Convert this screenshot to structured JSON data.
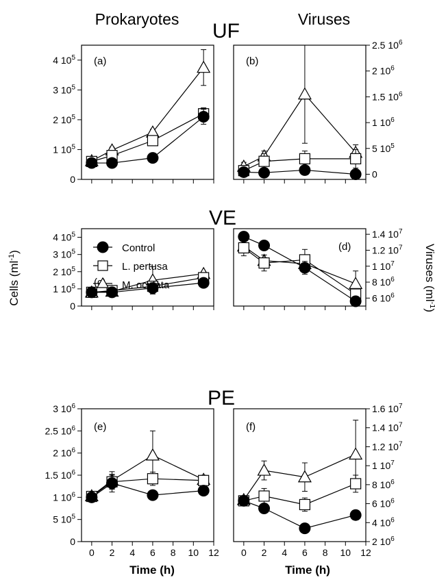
{
  "headings": {
    "left": "Prokaryotes",
    "right": "Viruses",
    "rows": [
      "UF",
      "VE",
      "PE"
    ]
  },
  "axes": {
    "left_ylabel": "Cells (ml",
    "left_ylabel_sup": "-1",
    "left_ylabel_end": ")",
    "right_ylabel": "Viruses (ml",
    "right_ylabel_sup": "-1",
    "right_ylabel_end": ")",
    "xlabel": "Time (h)",
    "x_ticks": [
      "0",
      "2",
      "4",
      "6",
      "8",
      "10",
      "12"
    ]
  },
  "legend": [
    {
      "label": "Control",
      "marker": "circle"
    },
    {
      "label": "L. pertusa",
      "marker": "square"
    },
    {
      "label": "M. oculata",
      "marker": "triangle"
    }
  ],
  "chart_data": [
    {
      "panel": "(a)",
      "type": "line",
      "xlim": [
        -1,
        12
      ],
      "ylim": [
        0,
        450000
      ],
      "show_xticklabels": false,
      "yticks": [
        {
          "v": 0,
          "label": "0"
        },
        {
          "v": 100000,
          "label": "1 10",
          "exp": "5"
        },
        {
          "v": 200000,
          "label": "2 10",
          "exp": "5"
        },
        {
          "v": 300000,
          "label": "3 10",
          "exp": "5"
        },
        {
          "v": 400000,
          "label": "4 10",
          "exp": "5"
        }
      ],
      "series": [
        {
          "name": "Control",
          "marker": "circle",
          "x": [
            0,
            2,
            6,
            11
          ],
          "y": [
            55000,
            55000,
            72000,
            210000
          ],
          "err": [
            8000,
            5000,
            5000,
            25000
          ]
        },
        {
          "name": "L. pertusa",
          "marker": "square",
          "x": [
            0,
            2,
            6,
            11
          ],
          "y": [
            60000,
            80000,
            130000,
            220000
          ],
          "err": [
            10000,
            8000,
            12000,
            20000
          ]
        },
        {
          "name": "M. oculata",
          "marker": "triangle",
          "x": [
            0,
            2,
            6,
            11
          ],
          "y": [
            62000,
            98000,
            158000,
            375000
          ],
          "err": [
            10000,
            10000,
            10000,
            60000
          ]
        }
      ]
    },
    {
      "panel": "(b)",
      "type": "line",
      "xlim": [
        -1,
        12
      ],
      "ylim": [
        -100000,
        2500000
      ],
      "show_xticklabels": false,
      "yticks": [
        {
          "v": 0,
          "label": "0"
        },
        {
          "v": 500000,
          "label": "5 10",
          "exp": "5"
        },
        {
          "v": 1000000,
          "label": "1 10",
          "exp": "6"
        },
        {
          "v": 1500000,
          "label": "1.5 10",
          "exp": "6"
        },
        {
          "v": 2000000,
          "label": "2 10",
          "exp": "6"
        },
        {
          "v": 2500000,
          "label": "2.5 10",
          "exp": "6"
        }
      ],
      "series": [
        {
          "name": "Control",
          "marker": "circle",
          "x": [
            0,
            2,
            6,
            11
          ],
          "y": [
            40000,
            30000,
            80000,
            0
          ],
          "err": [
            0,
            0,
            0,
            0
          ]
        },
        {
          "name": "L. pertusa",
          "marker": "square",
          "x": [
            0,
            2,
            6,
            11
          ],
          "y": [
            70000,
            250000,
            300000,
            300000
          ],
          "err": [
            100000,
            150000,
            150000,
            180000
          ]
        },
        {
          "name": "M. oculata",
          "marker": "triangle",
          "x": [
            0,
            2,
            6,
            11
          ],
          "y": [
            150000,
            350000,
            1550000,
            420000
          ],
          "err": [
            80000,
            100000,
            950000,
            150000
          ]
        }
      ]
    },
    {
      "panel": "(c)",
      "type": "line",
      "xlim": [
        -1,
        12
      ],
      "ylim": [
        0,
        450000
      ],
      "show_xticklabels": false,
      "yticks": [
        {
          "v": 0,
          "label": "0"
        },
        {
          "v": 100000,
          "label": "1 10",
          "exp": "5"
        },
        {
          "v": 200000,
          "label": "2 10",
          "exp": "5"
        },
        {
          "v": 300000,
          "label": "3 10",
          "exp": "5"
        },
        {
          "v": 400000,
          "label": "4 10",
          "exp": "5"
        }
      ],
      "series": [
        {
          "name": "Control",
          "marker": "circle",
          "x": [
            0,
            2,
            6,
            11
          ],
          "y": [
            80000,
            80000,
            105000,
            135000
          ],
          "err": [
            8000,
            8000,
            30000,
            10000
          ]
        },
        {
          "name": "L. pertusa",
          "marker": "square",
          "x": [
            0,
            2,
            6,
            11
          ],
          "y": [
            80000,
            90000,
            115000,
            165000
          ],
          "err": [
            8000,
            8000,
            10000,
            20000
          ]
        },
        {
          "name": "M. oculata",
          "marker": "triangle",
          "x": [
            0,
            2,
            6,
            11
          ],
          "y": [
            80000,
            85000,
            150000,
            188000
          ],
          "err": [
            8000,
            8000,
            80000,
            10000
          ]
        }
      ]
    },
    {
      "panel": "(d)",
      "type": "line",
      "xlim": [
        -1,
        12
      ],
      "ylim": [
        5000000,
        14700000
      ],
      "show_xticklabels": false,
      "yticks": [
        {
          "v": 6000000,
          "label": "6 10",
          "exp": "6"
        },
        {
          "v": 8000000,
          "label": "8 10",
          "exp": "6"
        },
        {
          "v": 10000000,
          "label": "1 10",
          "exp": "7"
        },
        {
          "v": 12000000,
          "label": "1.2 10",
          "exp": "7"
        },
        {
          "v": 14000000,
          "label": "1.4 10",
          "exp": "7"
        }
      ],
      "series": [
        {
          "name": "Control",
          "marker": "circle",
          "x": [
            0,
            2,
            6,
            11
          ],
          "y": [
            13700000,
            12600000,
            9800000,
            5600000
          ],
          "err": [
            600000,
            500000,
            800000,
            0
          ]
        },
        {
          "name": "L. pertusa",
          "marker": "square",
          "x": [
            0,
            2,
            6,
            11
          ],
          "y": [
            12300000,
            10400000,
            10800000,
            6500000
          ],
          "err": [
            1000000,
            1000000,
            1300000,
            500000
          ]
        },
        {
          "name": "M. oculata",
          "marker": "triangle",
          "x": [
            0,
            2,
            6,
            11
          ],
          "y": [
            12500000,
            10700000,
            10300000,
            7800000
          ],
          "err": [
            700000,
            700000,
            600000,
            1600000
          ]
        }
      ]
    },
    {
      "panel": "(e)",
      "type": "line",
      "xlim": [
        -1,
        12
      ],
      "ylim": [
        0,
        3000000
      ],
      "show_xticklabels": true,
      "yticks": [
        {
          "v": 0,
          "label": "0"
        },
        {
          "v": 500000,
          "label": "5 10",
          "exp": "5"
        },
        {
          "v": 1000000,
          "label": "1 10",
          "exp": "6"
        },
        {
          "v": 1500000,
          "label": "1.5 10",
          "exp": "6"
        },
        {
          "v": 2000000,
          "label": "2 10",
          "exp": "6"
        },
        {
          "v": 2500000,
          "label": "2.5 10",
          "exp": "6"
        },
        {
          "v": 3000000,
          "label": "3 10",
          "exp": "6"
        }
      ],
      "series": [
        {
          "name": "Control",
          "marker": "circle",
          "x": [
            0,
            2,
            6,
            11
          ],
          "y": [
            1000000,
            1320000,
            1050000,
            1150000
          ],
          "err": [
            60000,
            200000,
            0,
            80000
          ]
        },
        {
          "name": "L. pertusa",
          "marker": "square",
          "x": [
            0,
            2,
            6,
            11
          ],
          "y": [
            1020000,
            1350000,
            1420000,
            1380000
          ],
          "err": [
            60000,
            150000,
            150000,
            100000
          ]
        },
        {
          "name": "M. oculata",
          "marker": "triangle",
          "x": [
            0,
            2,
            6,
            11
          ],
          "y": [
            1030000,
            1380000,
            1950000,
            1400000
          ],
          "err": [
            60000,
            200000,
            550000,
            100000
          ]
        }
      ]
    },
    {
      "panel": "(f)",
      "type": "line",
      "xlim": [
        -1,
        12
      ],
      "ylim": [
        2000000,
        16000000
      ],
      "show_xticklabels": true,
      "yticks": [
        {
          "v": 2000000,
          "label": "2 10",
          "exp": "6"
        },
        {
          "v": 4000000,
          "label": "4 10",
          "exp": "6"
        },
        {
          "v": 6000000,
          "label": "6 10",
          "exp": "6"
        },
        {
          "v": 8000000,
          "label": "8 10",
          "exp": "6"
        },
        {
          "v": 10000000,
          "label": "1 10",
          "exp": "7"
        },
        {
          "v": 12000000,
          "label": "1.2 10",
          "exp": "7"
        },
        {
          "v": 14000000,
          "label": "1.4 10",
          "exp": "7"
        },
        {
          "v": 16000000,
          "label": "1.6 10",
          "exp": "7"
        }
      ],
      "series": [
        {
          "name": "Control",
          "marker": "circle",
          "x": [
            0,
            2,
            6,
            11
          ],
          "y": [
            6300000,
            5500000,
            3400000,
            4800000
          ],
          "err": [
            300000,
            0,
            0,
            0
          ]
        },
        {
          "name": "L. pertusa",
          "marker": "square",
          "x": [
            0,
            2,
            6,
            11
          ],
          "y": [
            6300000,
            6800000,
            5900000,
            8100000
          ],
          "err": [
            400000,
            800000,
            700000,
            900000
          ]
        },
        {
          "name": "M. oculata",
          "marker": "triangle",
          "x": [
            0,
            2,
            6,
            11
          ],
          "y": [
            6400000,
            9500000,
            8800000,
            11200000
          ],
          "err": [
            400000,
            1000000,
            1500000,
            3600000
          ]
        }
      ]
    }
  ]
}
